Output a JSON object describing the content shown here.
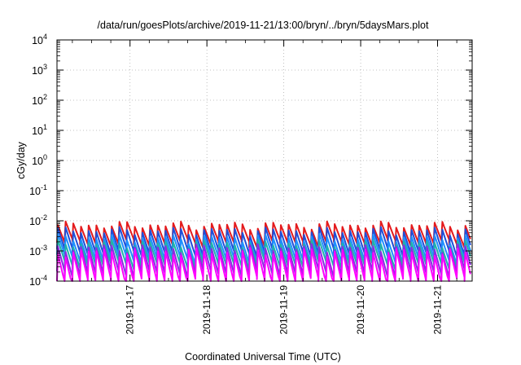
{
  "chart_data": {
    "type": "line",
    "title": "/data/run/goesPlots/archive/2019-11-21/13:00/bryn/../bryn/5daysMars.plot",
    "xlabel": "Coordinated Universal Time (UTC)",
    "ylabel": "cGy/day",
    "yscale": "log",
    "ylim": [
      0.0001,
      10000
    ],
    "xlim": [
      -0.95,
      4.45
    ],
    "x_unit": "days since 2019-11-17 00:00 UTC",
    "grid": true,
    "y_ticks": [
      {
        "exp": "-4",
        "value": 0.0001
      },
      {
        "exp": "-3",
        "value": 0.001
      },
      {
        "exp": "-2",
        "value": 0.01
      },
      {
        "exp": "-1",
        "value": 0.1
      },
      {
        "exp": "0",
        "value": 1
      },
      {
        "exp": "1",
        "value": 10
      },
      {
        "exp": "2",
        "value": 100
      },
      {
        "exp": "3",
        "value": 1000
      },
      {
        "exp": "4",
        "value": 10000
      }
    ],
    "x_ticks": [
      {
        "label": "2019-11-17",
        "value": 0
      },
      {
        "label": "2019-11-18",
        "value": 1
      },
      {
        "label": "2019-11-19",
        "value": 2
      },
      {
        "label": "2019-11-20",
        "value": 3
      },
      {
        "label": "2019-11-21",
        "value": 4
      }
    ],
    "sawtooth_period_days": 0.1,
    "series": [
      {
        "name": "",
        "color": "#e41a1c",
        "peak_level": 0.0085,
        "trough_level": 0.0022
      },
      {
        "name": "",
        "color": "#1f4fd8",
        "peak_level": 0.0055,
        "trough_level": 0.0011
      },
      {
        "name": "",
        "color": "#1e90ff",
        "peak_level": 0.0032,
        "trough_level": 0.00065
      },
      {
        "name": "",
        "color": "#20b2aa",
        "peak_level": 0.0021,
        "trough_level": 0.00042
      },
      {
        "name": "",
        "color": "#8a2be2",
        "peak_level": 0.0015,
        "trough_level": 0.00022
      },
      {
        "name": "",
        "color": "#ff00ff",
        "peak_level": 0.0011,
        "trough_level": 0.00012
      }
    ]
  }
}
